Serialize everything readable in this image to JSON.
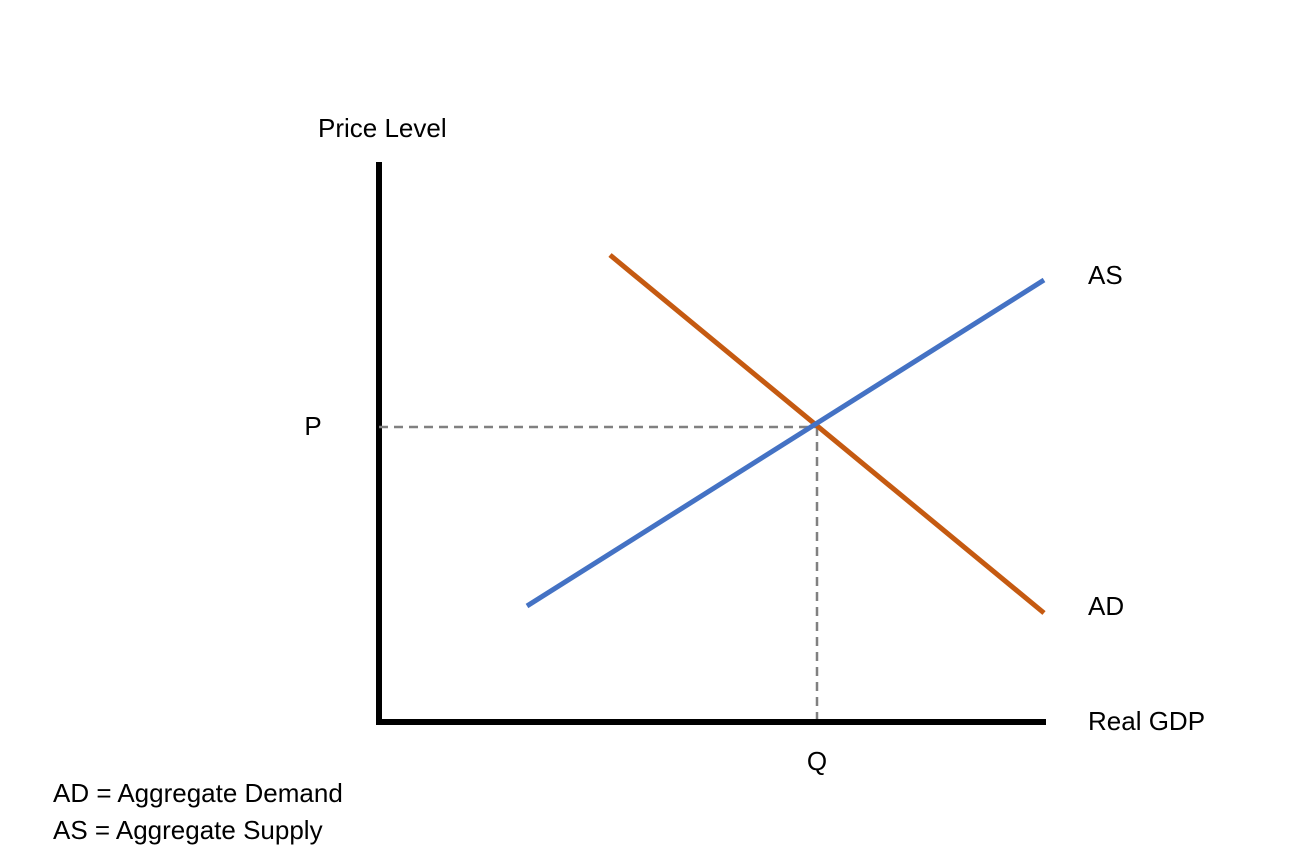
{
  "axes": {
    "y_label": "Price Level",
    "x_label": "Real GDP",
    "price_marker": "P",
    "quantity_marker": "Q"
  },
  "curves": [
    {
      "label": "AS"
    },
    {
      "label": "AD"
    }
  ],
  "legend": [
    "AD = Aggregate Demand",
    "AS = Aggregate Supply"
  ]
}
